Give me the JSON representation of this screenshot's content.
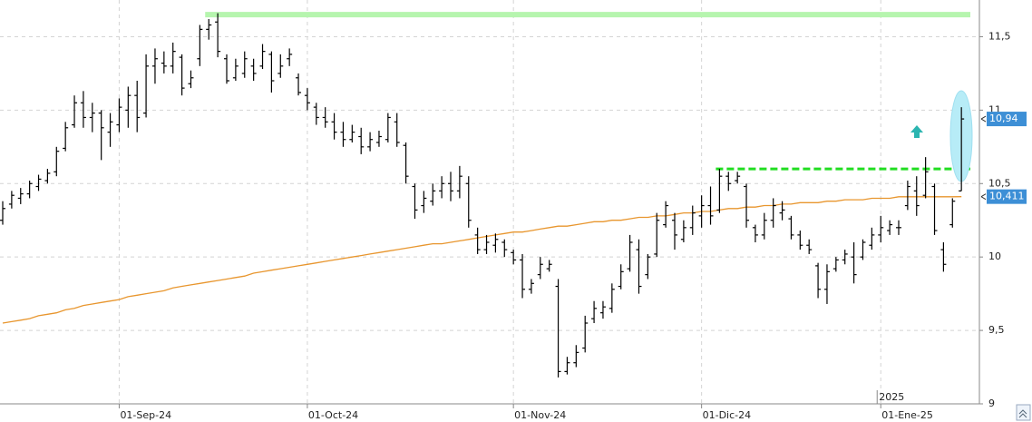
{
  "chart_data": {
    "type": "ohlc",
    "categories": [
      null,
      null,
      null,
      null,
      null,
      null,
      null,
      null,
      null,
      null,
      null,
      null,
      null,
      "01-Sep-24",
      null,
      null,
      null,
      null,
      null,
      null,
      null,
      null,
      null,
      null,
      null,
      null,
      null,
      null,
      null,
      null,
      null,
      null,
      null,
      null,
      "01-Oct-24",
      null,
      null,
      null,
      null,
      null,
      null,
      null,
      null,
      null,
      null,
      null,
      null,
      null,
      null,
      null,
      null,
      null,
      null,
      null,
      null,
      null,
      null,
      "01-Nov-24",
      null,
      null,
      null,
      null,
      null,
      null,
      null,
      null,
      null,
      null,
      null,
      null,
      null,
      null,
      null,
      null,
      null,
      null,
      null,
      null,
      "01-Dic-24",
      null,
      null,
      null,
      null,
      null,
      null,
      null,
      null,
      null,
      null,
      null,
      null,
      null,
      null,
      null,
      null,
      null,
      null,
      null,
      "01-Ene-25",
      null,
      null,
      null,
      null,
      null,
      null,
      null,
      null,
      null
    ],
    "year_label": "2025",
    "ohlc": {
      "color": "#000000",
      "open": [
        10.25,
        10.36,
        10.4,
        10.43,
        10.48,
        10.52,
        10.58,
        10.74,
        10.9,
        11.05,
        10.95,
        10.98,
        10.85,
        10.9,
        11.0,
        11.1,
        10.98,
        11.3,
        11.32,
        11.3,
        11.36,
        11.18,
        11.35,
        11.55,
        11.6,
        11.35,
        11.22,
        11.25,
        11.3,
        11.3,
        11.38,
        11.25,
        11.35,
        11.22,
        11.1,
        11.02,
        10.95,
        10.92,
        10.85,
        10.8,
        10.82,
        10.75,
        10.78,
        10.8,
        10.92,
        10.76,
        10.48,
        10.35,
        10.38,
        10.45,
        10.5,
        10.45,
        10.5,
        10.15,
        10.05,
        10.08,
        10.1,
        10.03,
        9.98,
        9.78,
        9.88,
        9.92,
        9.8,
        9.22,
        9.28,
        9.38,
        9.58,
        9.62,
        9.65,
        9.8,
        9.92,
        10.05,
        9.88,
        10.02,
        10.22,
        10.25,
        10.12,
        10.2,
        10.28,
        10.35,
        10.32,
        10.55,
        10.52,
        10.48,
        10.2,
        10.15,
        10.25,
        10.3,
        10.26,
        10.15,
        10.08,
        9.94,
        9.78,
        9.92,
        9.98,
        10.0,
        10.0,
        10.08,
        10.15,
        10.18,
        10.2,
        10.35,
        10.45,
        10.42,
        10.48,
        10.05,
        10.22,
        10.45
      ],
      "high": [
        10.38,
        10.45,
        10.47,
        10.52,
        10.56,
        10.6,
        10.75,
        10.92,
        11.1,
        11.13,
        11.05,
        11.0,
        10.98,
        11.08,
        11.16,
        11.2,
        11.38,
        11.42,
        11.4,
        11.46,
        11.38,
        11.27,
        11.58,
        11.62,
        11.66,
        11.38,
        11.35,
        11.4,
        11.35,
        11.45,
        11.4,
        11.38,
        11.42,
        11.25,
        11.15,
        11.05,
        11.02,
        10.98,
        10.92,
        10.9,
        10.88,
        10.85,
        10.86,
        10.98,
        10.98,
        10.78,
        10.5,
        10.45,
        10.5,
        10.55,
        10.58,
        10.62,
        10.55,
        10.2,
        10.15,
        10.16,
        10.12,
        10.05,
        10.02,
        9.85,
        10.0,
        9.98,
        9.85,
        9.32,
        9.4,
        9.6,
        9.7,
        9.7,
        9.82,
        9.95,
        10.15,
        10.12,
        10.02,
        10.3,
        10.38,
        10.3,
        10.25,
        10.35,
        10.42,
        10.48,
        10.6,
        10.58,
        10.58,
        10.5,
        10.22,
        10.3,
        10.4,
        10.38,
        10.28,
        10.18,
        10.12,
        9.96,
        9.95,
        10.0,
        10.05,
        10.1,
        10.12,
        10.2,
        10.28,
        10.25,
        10.25,
        10.52,
        10.55,
        10.68,
        10.5,
        10.1,
        10.4,
        11.02
      ],
      "low": [
        10.22,
        10.33,
        10.36,
        10.4,
        10.45,
        10.5,
        10.55,
        10.72,
        10.88,
        10.88,
        10.85,
        10.66,
        10.75,
        10.85,
        10.88,
        10.85,
        10.95,
        11.18,
        11.25,
        11.25,
        11.1,
        11.15,
        11.3,
        11.48,
        11.36,
        11.18,
        11.2,
        11.22,
        11.2,
        11.28,
        11.12,
        11.22,
        11.3,
        11.1,
        11.0,
        10.9,
        10.88,
        10.8,
        10.75,
        10.78,
        10.7,
        10.72,
        10.75,
        10.78,
        10.75,
        10.5,
        10.26,
        10.3,
        10.35,
        10.4,
        10.38,
        10.4,
        10.2,
        10.02,
        10.02,
        10.03,
        10.0,
        9.95,
        9.72,
        9.75,
        9.85,
        9.9,
        9.18,
        9.2,
        9.25,
        9.35,
        9.55,
        9.58,
        9.62,
        9.78,
        9.9,
        9.75,
        9.85,
        10.0,
        10.2,
        10.05,
        10.1,
        10.15,
        10.2,
        10.22,
        10.3,
        10.45,
        10.5,
        10.2,
        10.1,
        10.12,
        10.2,
        10.25,
        10.12,
        10.05,
        10.02,
        9.72,
        9.68,
        9.9,
        9.95,
        9.82,
        9.98,
        10.05,
        10.1,
        10.15,
        10.15,
        10.32,
        10.28,
        10.4,
        10.15,
        9.9,
        10.2,
        10.45
      ],
      "close": [
        10.33,
        10.42,
        10.43,
        10.5,
        10.53,
        10.57,
        10.72,
        10.88,
        11.05,
        10.95,
        10.98,
        10.88,
        10.92,
        11.02,
        11.1,
        10.95,
        11.3,
        11.35,
        11.3,
        11.4,
        11.15,
        11.22,
        11.55,
        11.58,
        11.4,
        11.2,
        11.3,
        11.35,
        11.25,
        11.4,
        11.2,
        11.3,
        11.38,
        11.12,
        11.05,
        10.95,
        10.92,
        10.85,
        10.8,
        10.85,
        10.75,
        10.8,
        10.82,
        10.95,
        10.78,
        10.55,
        10.32,
        10.4,
        10.45,
        10.5,
        10.45,
        10.55,
        10.25,
        10.05,
        10.1,
        10.12,
        10.05,
        9.98,
        9.78,
        9.82,
        9.95,
        9.95,
        9.22,
        9.28,
        9.35,
        9.55,
        9.65,
        9.66,
        9.78,
        9.9,
        10.1,
        9.8,
        10.0,
        10.25,
        10.35,
        10.15,
        10.2,
        10.3,
        10.35,
        10.28,
        10.55,
        10.5,
        10.55,
        10.25,
        10.15,
        10.25,
        10.35,
        10.32,
        10.15,
        10.08,
        10.05,
        9.78,
        9.9,
        9.98,
        10.02,
        9.88,
        10.1,
        10.15,
        10.2,
        10.22,
        10.2,
        10.48,
        10.35,
        10.58,
        10.18,
        9.95,
        10.38,
        10.94
      ]
    },
    "line": {
      "color": "#e8962e",
      "values": [
        9.55,
        9.56,
        9.57,
        9.58,
        9.6,
        9.61,
        9.62,
        9.64,
        9.65,
        9.67,
        9.68,
        9.69,
        9.7,
        9.71,
        9.73,
        9.74,
        9.75,
        9.76,
        9.77,
        9.79,
        9.8,
        9.81,
        9.82,
        9.83,
        9.84,
        9.85,
        9.86,
        9.87,
        9.89,
        9.9,
        9.91,
        9.92,
        9.93,
        9.94,
        9.95,
        9.96,
        9.97,
        9.98,
        9.99,
        10.0,
        10.01,
        10.02,
        10.03,
        10.04,
        10.05,
        10.06,
        10.07,
        10.08,
        10.09,
        10.09,
        10.1,
        10.11,
        10.12,
        10.13,
        10.14,
        10.15,
        10.16,
        10.17,
        10.17,
        10.18,
        10.19,
        10.2,
        10.21,
        10.21,
        10.22,
        10.23,
        10.24,
        10.24,
        10.25,
        10.25,
        10.26,
        10.27,
        10.27,
        10.28,
        10.28,
        10.29,
        10.3,
        10.3,
        10.31,
        10.31,
        10.32,
        10.33,
        10.33,
        10.34,
        10.34,
        10.35,
        10.35,
        10.36,
        10.36,
        10.37,
        10.37,
        10.37,
        10.38,
        10.38,
        10.39,
        10.39,
        10.39,
        10.4,
        10.4,
        10.4,
        10.41,
        10.41,
        10.41,
        10.41,
        10.41,
        10.41,
        10.41,
        10.411
      ]
    },
    "levels": [
      {
        "value": 11.65,
        "color": "#b6f5ae",
        "style": "solid",
        "from": 23
      },
      {
        "value": 10.6,
        "color": "#22dd22",
        "style": "dashed",
        "from": 80
      }
    ],
    "price_tags": [
      {
        "value": 10.94,
        "label": "10,94"
      },
      {
        "value": 10.411,
        "label": "10,411"
      }
    ],
    "ylim": [
      9,
      11.75
    ],
    "yticks": [
      9,
      {
        "value": 9.5,
        "label": "9,5"
      },
      10,
      {
        "value": 10.5,
        "label": "10,5"
      },
      11,
      {
        "value": 11.5,
        "label": "11,5"
      }
    ],
    "grid": true
  }
}
